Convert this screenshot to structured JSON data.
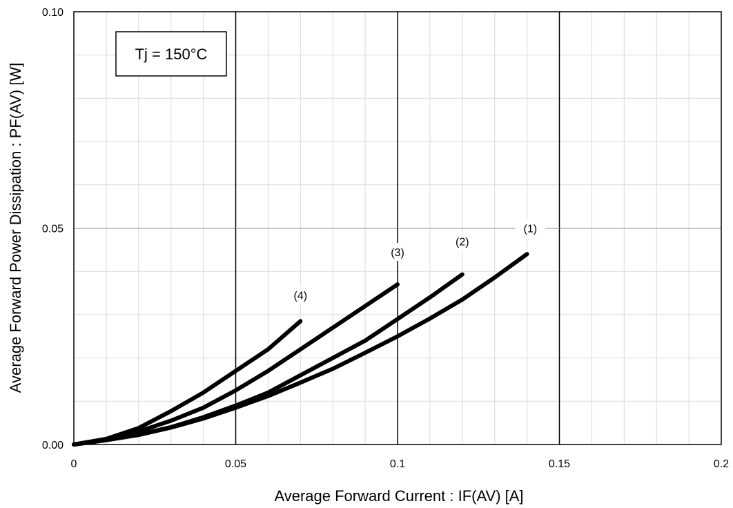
{
  "chart_data": {
    "type": "line",
    "title": "",
    "xlabel": "Average Forward Current : IF(AV) [A]",
    "ylabel": "Average Forward Power Dissipation : PF(AV) [W]",
    "xlim": [
      0,
      0.2
    ],
    "ylim": [
      0,
      0.1
    ],
    "x_ticks": [
      0,
      0.05,
      0.1,
      0.15,
      0.2
    ],
    "x_tick_labels": [
      "0",
      "0.05",
      "0.1",
      "0.15",
      "0.2"
    ],
    "y_ticks": [
      0,
      0.05,
      0.1
    ],
    "y_tick_labels": [
      "0.00",
      "0.05",
      "0.10"
    ],
    "x_minor_step": 0.01,
    "y_minor_step": 0.01,
    "grid": true,
    "annotation": "Tj = 150°C",
    "series": [
      {
        "name": "(1)",
        "x": [
          0,
          0.01,
          0.02,
          0.03,
          0.04,
          0.05,
          0.06,
          0.07,
          0.08,
          0.09,
          0.1,
          0.11,
          0.12,
          0.13,
          0.14
        ],
        "y": [
          0,
          0.001,
          0.0022,
          0.0039,
          0.006,
          0.0085,
          0.0112,
          0.0143,
          0.0175,
          0.0212,
          0.025,
          0.0291,
          0.0335,
          0.0386,
          0.044
        ]
      },
      {
        "name": "(2)",
        "x": [
          0,
          0.01,
          0.02,
          0.03,
          0.04,
          0.05,
          0.06,
          0.07,
          0.08,
          0.09,
          0.1,
          0.11,
          0.12
        ],
        "y": [
          0,
          0.001,
          0.0023,
          0.004,
          0.0063,
          0.009,
          0.012,
          0.016,
          0.02,
          0.024,
          0.029,
          0.034,
          0.0393
        ]
      },
      {
        "name": "(3)",
        "x": [
          0,
          0.01,
          0.02,
          0.03,
          0.04,
          0.05,
          0.06,
          0.07,
          0.08,
          0.09,
          0.1
        ],
        "y": [
          0,
          0.0012,
          0.003,
          0.0055,
          0.0085,
          0.0125,
          0.017,
          0.022,
          0.027,
          0.032,
          0.037
        ]
      },
      {
        "name": "(4)",
        "x": [
          0,
          0.01,
          0.02,
          0.03,
          0.04,
          0.05,
          0.06,
          0.07
        ],
        "y": [
          0,
          0.0013,
          0.0038,
          0.0077,
          0.012,
          0.017,
          0.022,
          0.0285
        ]
      }
    ],
    "series_label_points": [
      {
        "x": 0.141,
        "y": 0.05
      },
      {
        "x": 0.12,
        "y": 0.047
      },
      {
        "x": 0.1,
        "y": 0.0445
      },
      {
        "x": 0.07,
        "y": 0.0345
      }
    ]
  }
}
